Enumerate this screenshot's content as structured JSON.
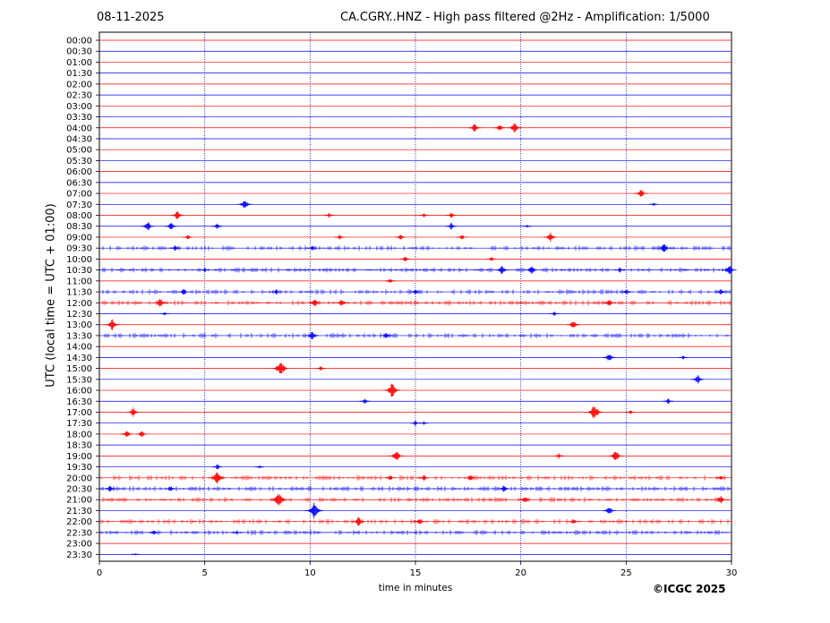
{
  "header": {
    "date": "08-11-2025",
    "title": "CA.CGRY..HNZ - High pass filtered @2Hz - Amplification: 1/5000"
  },
  "footer": {
    "copyright": "©ICGC 2025"
  },
  "colors": {
    "even_row": "#ff0000",
    "odd_row": "#0000ff",
    "grid": "#000080"
  },
  "chart_data": {
    "type": "line",
    "title": "CA.CGRY..HNZ - High pass filtered @2Hz - Amplification: 1/5000",
    "xlabel": "time in minutes",
    "ylabel": "UTC (local time = UTC + 01:00)",
    "xlim": [
      0,
      30
    ],
    "x_ticks": [
      0,
      5,
      10,
      15,
      20,
      25,
      30
    ],
    "vertical_gridlines": [
      5,
      10,
      15,
      20,
      25
    ],
    "grid": true,
    "row_labels": [
      "00:00",
      "00:30",
      "01:00",
      "01:30",
      "02:00",
      "02:30",
      "03:00",
      "03:30",
      "04:00",
      "04:30",
      "05:00",
      "05:30",
      "06:00",
      "06:30",
      "07:00",
      "07:30",
      "08:00",
      "08:30",
      "09:00",
      "09:30",
      "10:00",
      "10:30",
      "11:00",
      "11:30",
      "12:00",
      "12:30",
      "13:00",
      "13:30",
      "14:00",
      "14:30",
      "15:00",
      "15:30",
      "16:00",
      "16:30",
      "17:00",
      "17:30",
      "18:00",
      "18:30",
      "19:00",
      "19:30",
      "20:00",
      "20:30",
      "21:00",
      "21:30",
      "22:00",
      "22:30",
      "23:00",
      "23:30"
    ],
    "events": [
      {
        "row": "04:00",
        "minute": 17.8,
        "amp": 0.5
      },
      {
        "row": "04:00",
        "minute": 19.0,
        "amp": 0.4
      },
      {
        "row": "04:00",
        "minute": 19.7,
        "amp": 0.6
      },
      {
        "row": "07:00",
        "minute": 25.7,
        "amp": 0.5
      },
      {
        "row": "07:30",
        "minute": 6.9,
        "amp": 0.6
      },
      {
        "row": "07:30",
        "minute": 26.3,
        "amp": 0.2
      },
      {
        "row": "08:00",
        "minute": 3.7,
        "amp": 0.5
      },
      {
        "row": "08:00",
        "minute": 10.9,
        "amp": 0.3
      },
      {
        "row": "08:00",
        "minute": 15.4,
        "amp": 0.25
      },
      {
        "row": "08:00",
        "minute": 16.7,
        "amp": 0.3
      },
      {
        "row": "08:30",
        "minute": 2.3,
        "amp": 0.5
      },
      {
        "row": "08:30",
        "minute": 3.4,
        "amp": 0.45
      },
      {
        "row": "08:30",
        "minute": 5.6,
        "amp": 0.35
      },
      {
        "row": "08:30",
        "minute": 16.7,
        "amp": 0.4
      },
      {
        "row": "08:30",
        "minute": 20.3,
        "amp": 0.2
      },
      {
        "row": "09:00",
        "minute": 4.2,
        "amp": 0.35
      },
      {
        "row": "09:00",
        "minute": 11.4,
        "amp": 0.3
      },
      {
        "row": "09:00",
        "minute": 14.3,
        "amp": 0.35
      },
      {
        "row": "09:00",
        "minute": 17.2,
        "amp": 0.3
      },
      {
        "row": "09:00",
        "minute": 21.4,
        "amp": 0.5
      },
      {
        "row": "09:30",
        "minute": 3.6,
        "amp": 0.3
      },
      {
        "row": "09:30",
        "minute": 10.1,
        "amp": 0.25
      },
      {
        "row": "09:30",
        "minute": 26.8,
        "amp": 0.5
      },
      {
        "row": "10:00",
        "minute": 14.5,
        "amp": 0.3
      },
      {
        "row": "10:00",
        "minute": 18.6,
        "amp": 0.25
      },
      {
        "row": "10:30",
        "minute": 5.0,
        "amp": 0.25
      },
      {
        "row": "10:30",
        "minute": 19.1,
        "amp": 0.5
      },
      {
        "row": "10:30",
        "minute": 20.5,
        "amp": 0.45
      },
      {
        "row": "10:30",
        "minute": 24.7,
        "amp": 0.3
      },
      {
        "row": "10:30",
        "minute": 29.9,
        "amp": 0.6
      },
      {
        "row": "11:00",
        "minute": 13.8,
        "amp": 0.3
      },
      {
        "row": "11:30",
        "minute": 4.0,
        "amp": 0.35
      },
      {
        "row": "11:30",
        "minute": 8.4,
        "amp": 0.3
      },
      {
        "row": "11:30",
        "minute": 15.0,
        "amp": 0.35
      },
      {
        "row": "11:30",
        "minute": 25.0,
        "amp": 0.3
      },
      {
        "row": "11:30",
        "minute": 29.5,
        "amp": 0.35
      },
      {
        "row": "12:00",
        "minute": 2.9,
        "amp": 0.5
      },
      {
        "row": "12:00",
        "minute": 10.2,
        "amp": 0.5
      },
      {
        "row": "12:00",
        "minute": 11.5,
        "amp": 0.45
      },
      {
        "row": "12:00",
        "minute": 24.2,
        "amp": 0.4
      },
      {
        "row": "12:30",
        "minute": 3.1,
        "amp": 0.2
      },
      {
        "row": "12:30",
        "minute": 21.6,
        "amp": 0.25
      },
      {
        "row": "13:00",
        "minute": 0.6,
        "amp": 0.6
      },
      {
        "row": "13:00",
        "minute": 22.5,
        "amp": 0.5
      },
      {
        "row": "13:30",
        "minute": 10.1,
        "amp": 0.5
      },
      {
        "row": "13:30",
        "minute": 13.6,
        "amp": 0.35
      },
      {
        "row": "14:30",
        "minute": 24.2,
        "amp": 0.5
      },
      {
        "row": "14:30",
        "minute": 27.7,
        "amp": 0.25
      },
      {
        "row": "15:00",
        "minute": 8.6,
        "amp": 0.8
      },
      {
        "row": "15:00",
        "minute": 10.5,
        "amp": 0.25
      },
      {
        "row": "15:30",
        "minute": 28.4,
        "amp": 0.5
      },
      {
        "row": "16:00",
        "minute": 13.9,
        "amp": 0.8
      },
      {
        "row": "16:30",
        "minute": 12.6,
        "amp": 0.3
      },
      {
        "row": "16:30",
        "minute": 27.0,
        "amp": 0.3
      },
      {
        "row": "17:00",
        "minute": 1.6,
        "amp": 0.5
      },
      {
        "row": "17:00",
        "minute": 23.5,
        "amp": 0.8
      },
      {
        "row": "17:00",
        "minute": 25.2,
        "amp": 0.25
      },
      {
        "row": "17:30",
        "minute": 15.0,
        "amp": 0.3
      },
      {
        "row": "17:30",
        "minute": 15.4,
        "amp": 0.2
      },
      {
        "row": "18:00",
        "minute": 1.3,
        "amp": 0.45
      },
      {
        "row": "18:00",
        "minute": 2.0,
        "amp": 0.4
      },
      {
        "row": "19:00",
        "minute": 14.1,
        "amp": 0.6
      },
      {
        "row": "19:00",
        "minute": 21.8,
        "amp": 0.3
      },
      {
        "row": "19:00",
        "minute": 24.5,
        "amp": 0.6
      },
      {
        "row": "19:30",
        "minute": 5.6,
        "amp": 0.3
      },
      {
        "row": "19:30",
        "minute": 7.6,
        "amp": 0.2
      },
      {
        "row": "20:00",
        "minute": 5.6,
        "amp": 0.7
      },
      {
        "row": "20:00",
        "minute": 13.8,
        "amp": 0.3
      },
      {
        "row": "20:00",
        "minute": 15.4,
        "amp": 0.3
      },
      {
        "row": "20:00",
        "minute": 17.6,
        "amp": 0.3
      },
      {
        "row": "20:00",
        "minute": 29.5,
        "amp": 0.3
      },
      {
        "row": "20:30",
        "minute": 0.5,
        "amp": 0.35
      },
      {
        "row": "20:30",
        "minute": 3.4,
        "amp": 0.35
      },
      {
        "row": "20:30",
        "minute": 19.2,
        "amp": 0.4
      },
      {
        "row": "21:00",
        "minute": 8.5,
        "amp": 0.8
      },
      {
        "row": "21:00",
        "minute": 20.2,
        "amp": 0.4
      },
      {
        "row": "21:00",
        "minute": 29.5,
        "amp": 0.5
      },
      {
        "row": "21:30",
        "minute": 10.2,
        "amp": 0.9
      },
      {
        "row": "21:30",
        "minute": 24.2,
        "amp": 0.5
      },
      {
        "row": "22:00",
        "minute": 12.3,
        "amp": 0.5
      },
      {
        "row": "22:00",
        "minute": 15.2,
        "amp": 0.4
      },
      {
        "row": "22:00",
        "minute": 22.5,
        "amp": 0.3
      },
      {
        "row": "22:30",
        "minute": 2.6,
        "amp": 0.35
      },
      {
        "row": "22:30",
        "minute": 6.5,
        "amp": 0.2
      },
      {
        "row": "23:30",
        "minute": 1.7,
        "amp": 0.15
      }
    ],
    "noisy_rows": [
      "09:30",
      "10:30",
      "11:30",
      "12:00",
      "13:30",
      "20:00",
      "20:30",
      "21:00",
      "22:00",
      "22:30"
    ]
  }
}
